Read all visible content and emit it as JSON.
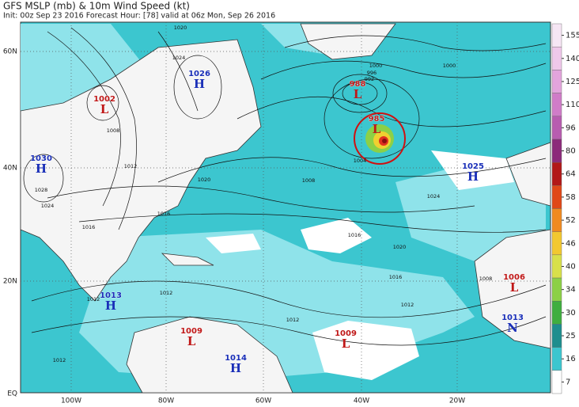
{
  "header": {
    "title": "GFS MSLP (mb) & 10m Wind Speed (kt)",
    "subtitle": "Init: 00z Sep 23 2016   Forecast Hour: [78]   valid at 06z Mon, Sep 26 2016"
  },
  "latitude_labels": [
    "60N",
    "40N",
    "20N",
    "EQ"
  ],
  "longitude_labels": [
    "100W",
    "80W",
    "60W",
    "40W",
    "20W"
  ],
  "colorbar": {
    "ticks": [
      155,
      140,
      125,
      110,
      96,
      80,
      64,
      58,
      52,
      46,
      40,
      34,
      30,
      25,
      16,
      7
    ]
  },
  "pressure_centers": [
    {
      "letter": "H",
      "value": "1026"
    },
    {
      "letter": "L",
      "value": "1002"
    },
    {
      "letter": "H",
      "value": "1030"
    },
    {
      "letter": "L",
      "value": "988"
    },
    {
      "letter": "L",
      "value": "985"
    },
    {
      "letter": "H",
      "value": "1025"
    },
    {
      "letter": "H",
      "value": "1013"
    },
    {
      "letter": "L",
      "value": "1006"
    },
    {
      "letter": "L",
      "value": "1009"
    },
    {
      "letter": "L",
      "value": "1009"
    },
    {
      "letter": "H",
      "value": "1014"
    },
    {
      "letter": "N",
      "value": "1013"
    }
  ],
  "isobar_labels": [
    "1020",
    "1024",
    "1008",
    "1012",
    "1020",
    "1016",
    "1016",
    "1024",
    "1028",
    "1012",
    "1012",
    "1012",
    "1012",
    "1012",
    "1016",
    "1020",
    "1016",
    "1008",
    "1004",
    "1024",
    "1000",
    "1000",
    "992",
    "996",
    "1008"
  ]
}
